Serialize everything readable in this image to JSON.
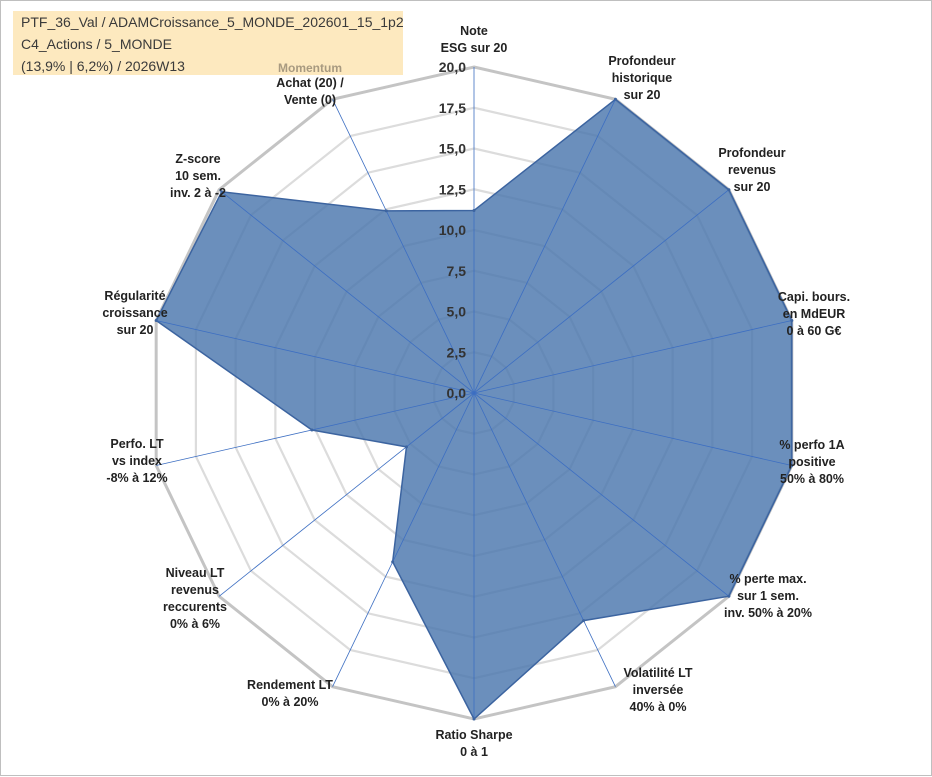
{
  "header": {
    "line1": "PTF_36_Val / ADAMCroissance_5_MONDE_202601_15_1p2",
    "line2": "C4_Actions / 5_MONDE",
    "line3": "(13,9% | 6,2%) / 2026W13"
  },
  "colors": {
    "area_fill": "#4a76ad",
    "area_stroke": "#3c64a0",
    "outer_grid": "#c4c4c4",
    "inner_grid": "#dcdcdc",
    "spoke": "#3c6ec2"
  },
  "chart_data": {
    "type": "radar",
    "title": "",
    "group_label": "Momentum",
    "axes": [
      {
        "id": "note-esg",
        "lines": [
          "Note",
          "ESG sur 20"
        ]
      },
      {
        "id": "profondeur-historique",
        "lines": [
          "Profondeur",
          "historique",
          "sur 20"
        ]
      },
      {
        "id": "profondeur-revenus",
        "lines": [
          "Profondeur",
          "revenus",
          "sur 20"
        ]
      },
      {
        "id": "capi-bours",
        "lines": [
          "Capi. bours.",
          "en MdEUR",
          "0 à 60 G€"
        ]
      },
      {
        "id": "perfo-1a",
        "lines": [
          "% perfo 1A",
          "positive",
          "50% à 80%"
        ]
      },
      {
        "id": "perte-max",
        "lines": [
          "% perte max.",
          "sur 1 sem.",
          "inv. 50% à 20%"
        ]
      },
      {
        "id": "volatilite-lt",
        "lines": [
          "Volatilité LT",
          "inversée",
          "40% à 0%"
        ]
      },
      {
        "id": "ratio-sharpe",
        "lines": [
          "Ratio Sharpe",
          "0 à 1"
        ]
      },
      {
        "id": "rendement-lt",
        "lines": [
          "Rendement LT",
          "0% à 20%"
        ]
      },
      {
        "id": "niveau-lt-revenus",
        "lines": [
          "Niveau LT",
          "revenus",
          "reccurents",
          "0% à 6%"
        ]
      },
      {
        "id": "perfo-lt-index",
        "lines": [
          "Perfo. LT",
          "vs index",
          "-8% à 12%"
        ]
      },
      {
        "id": "regularite-croissance",
        "lines": [
          "Régularité",
          "croissance",
          "sur 20"
        ]
      },
      {
        "id": "z-score",
        "lines": [
          "Z-score",
          "10 sem.",
          "inv. 2 à -2"
        ]
      },
      {
        "id": "momentum",
        "lines": [
          "Achat (20) /",
          "Vente (0)"
        ]
      }
    ],
    "series": [
      {
        "name": "PTF_36_Val",
        "values": [
          11.2,
          20,
          20,
          20,
          20,
          20,
          15.5,
          20,
          11.5,
          5.3,
          10.2,
          20,
          19.8,
          12.4
        ]
      }
    ],
    "rlim": [
      0,
      20
    ],
    "ticks": [
      "0,0",
      "2,5",
      "5,0",
      "7,5",
      "10,0",
      "12,5",
      "15,0",
      "17,5",
      "20,0"
    ]
  }
}
